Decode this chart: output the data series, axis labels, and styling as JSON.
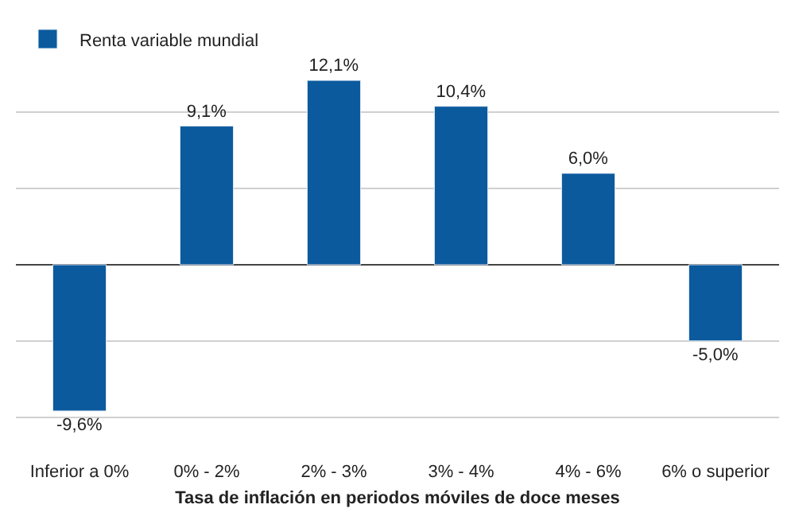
{
  "chart_data": {
    "type": "bar",
    "xlabel": "Tasa de inflación en periodos móviles de doce meses",
    "categories": [
      "Inferior a 0%",
      "0% - 2%",
      "2% - 3%",
      "3% - 4%",
      "4% - 6%",
      "6% o superior"
    ],
    "series": [
      {
        "name": "Renta variable mundial",
        "color": "#0b5a9e",
        "values": [
          -9.6,
          9.1,
          12.1,
          10.4,
          6.0,
          -5.0
        ],
        "value_labels": [
          "-9,6%",
          "9,1%",
          "12,1%",
          "10,4%",
          "6,0%",
          "-5,0%"
        ]
      }
    ],
    "yticks": [
      {
        "value": -10,
        "label": null
      },
      {
        "value": -5,
        "label": null
      },
      {
        "value": 0,
        "label": null
      },
      {
        "value": 5,
        "label": null
      },
      {
        "value": 10,
        "label": null
      }
    ],
    "tick_labels": "x",
    "grid": "y",
    "legend": "top left"
  }
}
